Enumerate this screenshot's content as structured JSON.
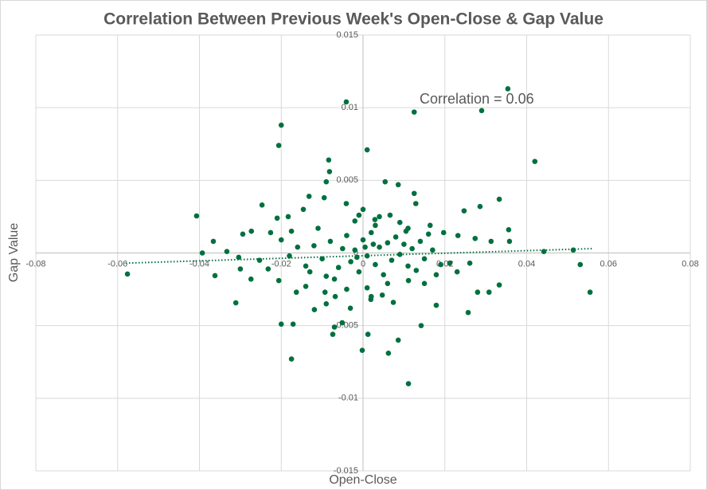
{
  "chart_data": {
    "type": "scatter",
    "title": "Correlation Between Previous Week's Open-Close & Gap Value",
    "x_label": "Open-Close",
    "y_label": "Gap Value",
    "annotation": "Correlation = 0.06",
    "color": "#00703f",
    "grid": true,
    "xlim": [
      -0.08,
      0.08
    ],
    "xticks": [
      -0.08,
      -0.06,
      -0.04,
      -0.02,
      0,
      0.02,
      0.04,
      0.06,
      0.08
    ],
    "ylim": [
      -0.015,
      0.015
    ],
    "yticks": [
      -0.015,
      -0.01,
      -0.005,
      0,
      0.005,
      0.01,
      0.015
    ],
    "trendline": {
      "x": [
        -0.058,
        0.056
      ],
      "y": [
        -0.0007,
        0.0003
      ]
    },
    "x": [
      -0.0576,
      -0.0407,
      -0.0366,
      -0.0362,
      -0.0311,
      -0.02,
      -0.0206,
      -0.0041,
      0.001,
      0.0125,
      0.029,
      0.0354,
      0.042,
      -0.0084,
      -0.0082,
      0.0333,
      0.0247,
      0.0286,
      0.0356,
      0.0358,
      0.0442,
      0.0514,
      0.0531,
      0.0555,
      0.0333,
      0.0308,
      0.028,
      0.0257,
      0.0179,
      0.0142,
      0.0111,
      0.0062,
      0.0086,
      -0.0002,
      0.0012,
      -0.0175,
      -0.02,
      -0.0171,
      -0.0074,
      -0.007,
      -0.0051,
      -0.009,
      -0.0119,
      -0.0226,
      -0.0247,
      -0.0294,
      -0.0273,
      -0.0304,
      -0.03,
      -0.0274,
      -0.0333,
      -0.0393,
      -0.0253,
      -0.021,
      -0.0183,
      -0.0175,
      -0.0146,
      -0.0132,
      -0.0095,
      -0.009,
      -0.0041,
      0.0054,
      0.0086,
      0.0125,
      0.0129,
      0.0029,
      0.0066,
      0.0105,
      0.0164,
      0.0197,
      0.0232,
      0.0274,
      0.0313,
      0.0212,
      0.023,
      0.0261,
      0.0179,
      0.015,
      0.0111,
      0.0074,
      0.0047,
      0.0019,
      -0.0031,
      -0.0068,
      -0.0093,
      -0.014,
      -0.0163,
      -0.0206,
      -0.0232,
      -0.012,
      -0.01,
      -0.008,
      -0.006,
      -0.005,
      -0.004,
      -0.003,
      -0.002,
      -0.001,
      0,
      0.001,
      0.002,
      0.003,
      0.004,
      0.005,
      0.006,
      0.007,
      0.008,
      0.009,
      0.01,
      0.011,
      0.012,
      0.013,
      0.014,
      0.015,
      -0.014,
      -0.016,
      -0.018,
      -0.011,
      -0.007,
      0.003,
      0.006,
      -0.002,
      0.001,
      0.009,
      -0.009,
      0.017,
      0.019,
      -0.02,
      0,
      -0.001,
      0.002,
      0.004,
      -0.004,
      0.011,
      -0.013,
      0.016,
      0.0005,
      -0.0015,
      0.0025
    ],
    "values": [
      -0.00145,
      0.00255,
      0.0008,
      -0.00156,
      -0.00343,
      0.0088,
      0.0074,
      0.0104,
      0.0071,
      0.0097,
      0.0098,
      0.0113,
      0.0063,
      0.0064,
      0.0056,
      0.0037,
      0.0029,
      0.0032,
      0.0016,
      0.0008,
      0.0001,
      0.0002,
      -0.0008,
      -0.0027,
      -0.0022,
      -0.0027,
      -0.0027,
      -0.0041,
      -0.0036,
      -0.005,
      -0.009,
      -0.0069,
      -0.006,
      -0.0067,
      -0.0056,
      -0.0073,
      -0.0049,
      -0.0049,
      -0.0056,
      -0.0051,
      -0.0048,
      -0.0035,
      -0.0039,
      0.0014,
      0.0033,
      0.0013,
      0.0015,
      -0.0003,
      -0.0011,
      -0.0018,
      0.0001,
      0,
      -0.0005,
      0.0024,
      0.0025,
      0.0015,
      0.003,
      0.0039,
      0.0038,
      0.0049,
      0.0034,
      0.0049,
      0.0047,
      0.0041,
      0.0034,
      0.0023,
      0.0026,
      0.0015,
      0.0019,
      0.0014,
      0.0012,
      0.001,
      0.0008,
      -0.0007,
      -0.0013,
      -0.0007,
      -0.0015,
      -0.0021,
      -0.0019,
      -0.0034,
      -0.0029,
      -0.0032,
      -0.0038,
      -0.003,
      -0.0027,
      -0.0023,
      -0.0027,
      -0.0019,
      -0.0011,
      0.0005,
      -0.0004,
      0.0008,
      -0.001,
      0.0003,
      0.0012,
      -0.0006,
      0.0002,
      -0.0013,
      0.0009,
      -0.0002,
      0.0014,
      -0.0008,
      0.0004,
      -0.0015,
      0.0007,
      -0.0005,
      0.0011,
      -0.0001,
      0.0006,
      -0.0009,
      0.0003,
      -0.0012,
      0.0008,
      -0.0004,
      -0.0009,
      0.0004,
      -0.0002,
      0.0017,
      -0.0018,
      0.0019,
      -0.0021,
      0.0022,
      -0.0024,
      0.0021,
      -0.0016,
      0.0002,
      -0.0008,
      0.0009,
      0.003,
      0.0026,
      -0.003,
      0.0025,
      -0.0025,
      0.0017,
      -0.0013,
      0.0013,
      0.0004,
      -0.0003,
      0.0006
    ]
  }
}
